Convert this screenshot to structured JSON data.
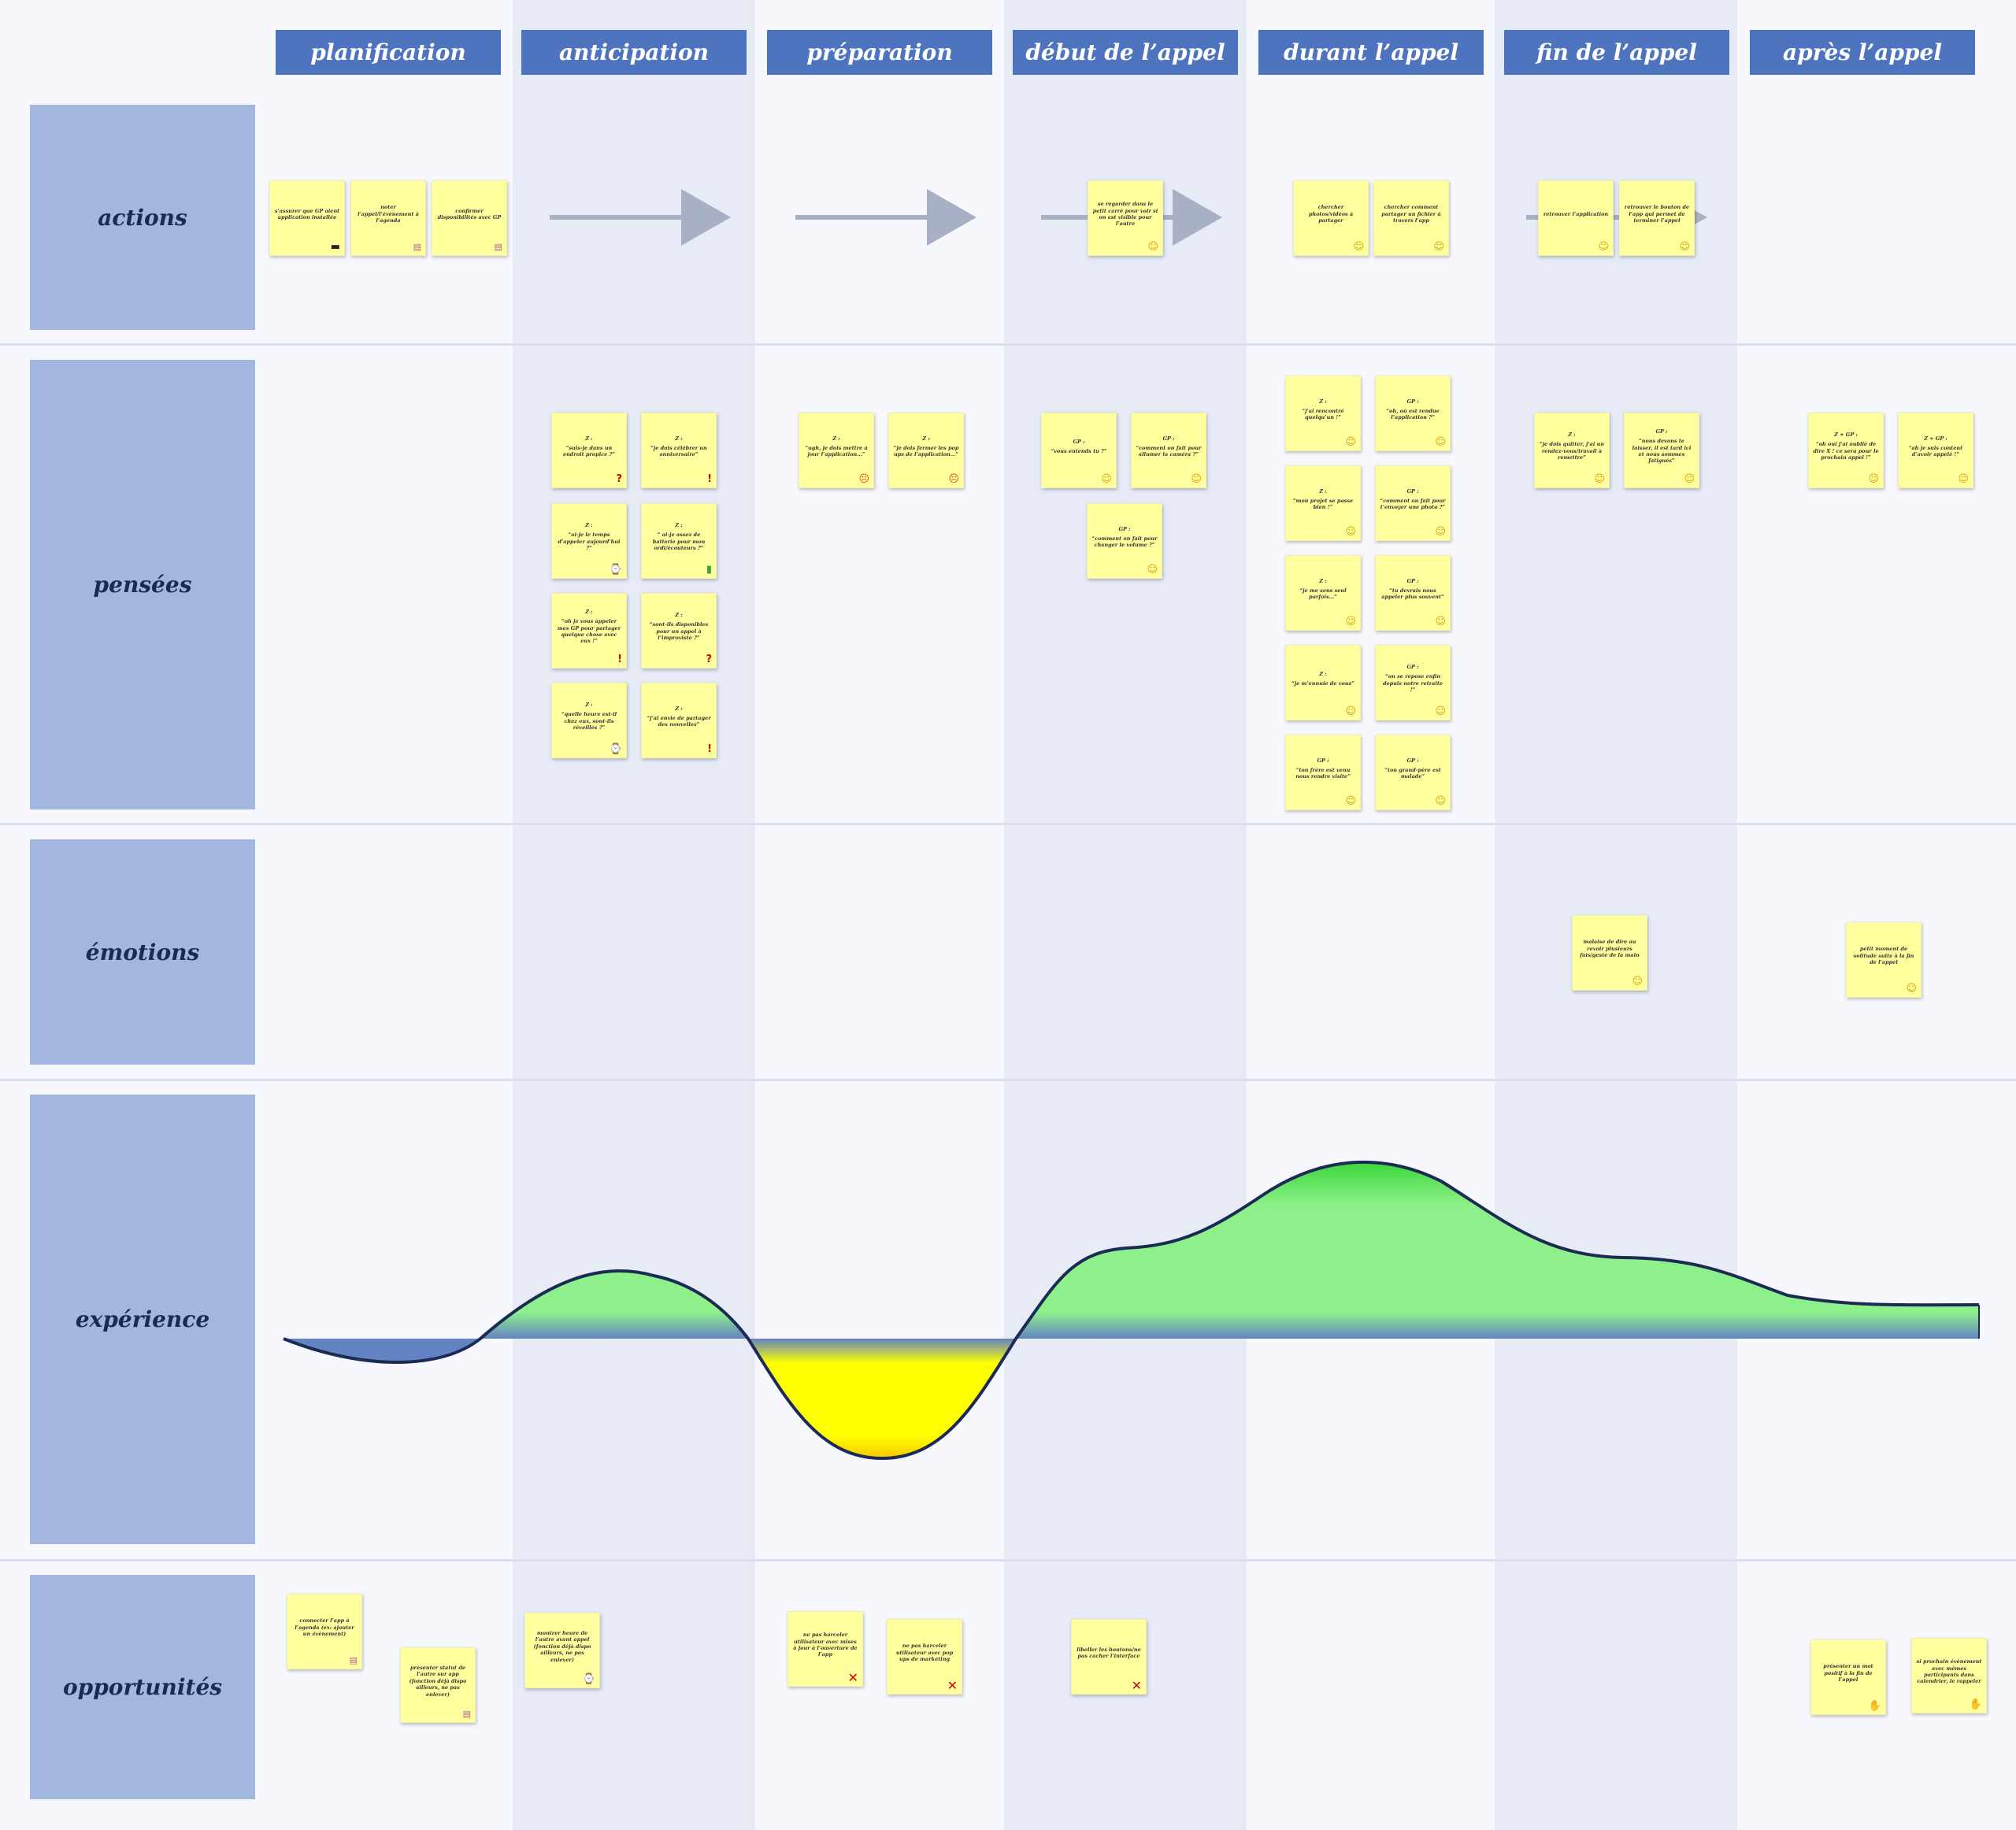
{
  "columns": [
    "planification",
    "anticipation",
    "préparation",
    "début de l’appel",
    "durant l’appel",
    "fin de l’appel",
    "après l’appel"
  ],
  "rows": [
    "actions",
    "pensées",
    "émotions",
    "expérience",
    "opportunités"
  ],
  "colors": {
    "header": "#4e73bf",
    "row_label": "#a3b6df",
    "band": "#e7ebf6",
    "note": "#ffff9e",
    "arrow": "#a7b0c4",
    "curve_line": "#1c2b55",
    "positive": "#8ef08a",
    "negative": "#ffff00",
    "baseline": "#6383c2"
  },
  "notes": {
    "actions": [
      {
        "col": 0,
        "text": "s’assurer que GP aient application installée",
        "icon": "laptop"
      },
      {
        "col": 0,
        "text": "noter l’appel/l’évènement à l’agenda",
        "icon": "cal"
      },
      {
        "col": 0,
        "text": "confirmer disponibilités avec GP",
        "icon": "cal"
      },
      {
        "col": 3,
        "text": "se regarder dans le petit carré pour voir si on est visible pour l’autre",
        "icon": "smile"
      },
      {
        "col": 4,
        "text": "chercher photos/vidéos à partager",
        "icon": "smile"
      },
      {
        "col": 4,
        "text": "chercher comment partager un fichier à travers l’app",
        "icon": "smile"
      },
      {
        "col": 5,
        "text": "retrouver l’application",
        "icon": "smile"
      },
      {
        "col": 5,
        "text": "retrouver le bouton de l’app qui permet de terminer l’appel",
        "icon": "smile"
      }
    ],
    "pensees": [
      {
        "col": 1,
        "head": "Z :",
        "text": "“suis-je dans un endroit propice ?”",
        "icon": "quest"
      },
      {
        "col": 1,
        "head": "Z :",
        "text": "“je dois célébrer un anniversaire”",
        "icon": "excl"
      },
      {
        "col": 1,
        "head": "Z :",
        "text": "“ai-je le temps d’appeler aujourd’hui ?”",
        "icon": "watch"
      },
      {
        "col": 1,
        "head": "Z :",
        "text": "“ ai-je assez de batterie pour mon ordi/écouteurs ?”",
        "icon": "battery"
      },
      {
        "col": 1,
        "head": "Z :",
        "text": "“oh je vous appeler mes GP pour partager quelque chose avec eux !”",
        "icon": "excl"
      },
      {
        "col": 1,
        "head": "Z :",
        "text": "“sont-ils disponibles pour un appel à l’improviste ?”",
        "icon": "quest"
      },
      {
        "col": 1,
        "head": "Z :",
        "text": "“quelle heure est-il chez eux, sont-ils réveillés ?”",
        "icon": "watch"
      },
      {
        "col": 1,
        "head": "Z :",
        "text": "“j’ai envie de partager des nouvelles”",
        "icon": "excl"
      },
      {
        "col": 2,
        "head": "Z :",
        "text": "“ugh, je dois mettre à jour l’application…”",
        "icon": "angry"
      },
      {
        "col": 2,
        "head": "Z :",
        "text": "“je dois fermer les pop ups de l’application…”",
        "icon": "angry"
      },
      {
        "col": 3,
        "head": "GP :",
        "text": "“vous entends tu ?”",
        "icon": "smile"
      },
      {
        "col": 3,
        "head": "GP :",
        "text": "“comment on fait pour allumer la caméra ?”",
        "icon": "smile"
      },
      {
        "col": 3,
        "head": "GP :",
        "text": "“comment on fait pour changer le volume ?”",
        "icon": "smile"
      },
      {
        "col": 4,
        "head": "Z :",
        "text": "“j’ai rencontré quelqu’un !”",
        "icon": "smile"
      },
      {
        "col": 4,
        "head": "GP :",
        "text": "“oh, où est rendue l’application ?”",
        "icon": "smile"
      },
      {
        "col": 4,
        "head": "Z :",
        "text": "“mon projet se passe bien !”",
        "icon": "smile"
      },
      {
        "col": 4,
        "head": "GP :",
        "text": "“comment on fait pour t’envoyer une photo ?”",
        "icon": "smile"
      },
      {
        "col": 4,
        "head": "Z :",
        "text": "“je me sens seul parfois…”",
        "icon": "wry"
      },
      {
        "col": 4,
        "head": "GP :",
        "text": "“tu devrais nous appeler plus souvent”",
        "icon": "smile"
      },
      {
        "col": 4,
        "head": "Z :",
        "text": "“je m’ennuie de vous”",
        "icon": "wry"
      },
      {
        "col": 4,
        "head": "GP :",
        "text": "“on se repose enfin depuis notre retraite !”",
        "icon": "smile"
      },
      {
        "col": 4,
        "head": "GP :",
        "text": "“ton frère est venu nous rendre visite”",
        "icon": "smile"
      },
      {
        "col": 4,
        "head": "GP :",
        "text": "“ton grand-père est malade”",
        "icon": "wry"
      },
      {
        "col": 5,
        "head": "Z :",
        "text": "“je dois quitter, j’ai un rendez-vous/travail à remettre”",
        "icon": "smile"
      },
      {
        "col": 5,
        "head": "GP :",
        "text": "“nous devons te laisser, il est tard ici et nous sommes fatigués”",
        "icon": "smile"
      },
      {
        "col": 6,
        "head": "Z + GP :",
        "text": "“oh oui j’ai oublié de dire X ! ce sera pour le prochain appel !”",
        "icon": "smile"
      },
      {
        "col": 6,
        "head": "Z + GP :",
        "text": "“ah je suis content d’avoir appelé !”",
        "icon": "smile"
      }
    ],
    "emotions": [
      {
        "col": 5,
        "text": "malaise de dire au revoir plusieurs fois/geste de la main",
        "icon": "wry"
      },
      {
        "col": 6,
        "text": "petit moment de solitude suite à la fin de l’appel",
        "icon": "wry"
      }
    ],
    "opportunites": [
      {
        "col": 0,
        "text": "connecter l’app à l’agenda (ex: ajouter un évènement)",
        "icon": "cal"
      },
      {
        "col": 0,
        "text": "présenter statut de l’autre sur app (fonction déjà dispo ailleurs, ne pas enlever)",
        "icon": "cal"
      },
      {
        "col": 1,
        "text": "montrer heure de l’autre avant appel (fonction déjà dispo ailleurs, ne pas enlever)",
        "icon": "watch"
      },
      {
        "col": 2,
        "text": "ne pas harceler utilisateur avec mises à jour à l’ouverture de l’app",
        "icon": "cross"
      },
      {
        "col": 2,
        "text": "ne pas harceler utilisateur avec pop ups de marketing",
        "icon": "cross"
      },
      {
        "col": 3,
        "text": "libeller les boutons/ne pas cacher l’interface",
        "icon": "cross"
      },
      {
        "col": 6,
        "text": "présenter un mot positif à la fin de l’appel",
        "icon": "hands"
      },
      {
        "col": 6,
        "text": "si prochain évènement avec mêmes participants dans calendrier, le rappeler",
        "icon": "hands"
      }
    ]
  },
  "icons": {
    "smile": "☺",
    "wry": "☺",
    "angry": "☹",
    "excl": "!",
    "quest": "?",
    "cross": "✕",
    "watch": "⌚",
    "battery": "▮",
    "laptop": "▬",
    "cal": "▤",
    "hands": "✋"
  }
}
